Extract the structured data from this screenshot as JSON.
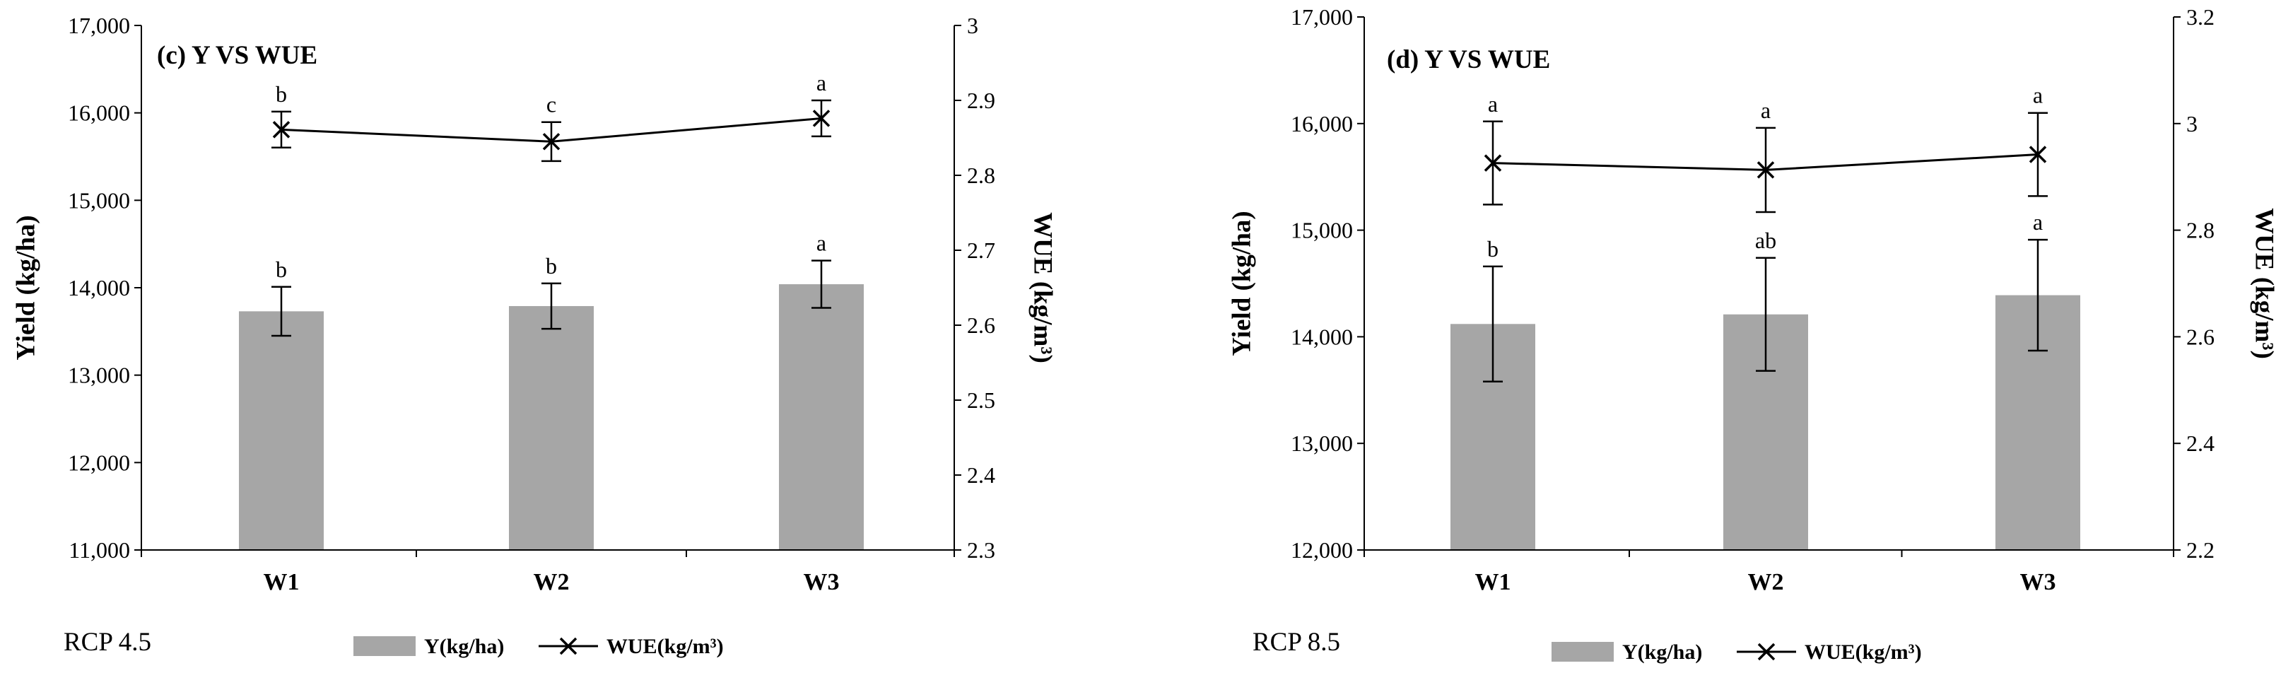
{
  "colors": {
    "bar": "#a6a6a6",
    "line": "#000000",
    "axis": "#000000",
    "background": "#ffffff"
  },
  "legend": {
    "bar_label": "Y(kg/ha)",
    "line_label": "WUE(kg/m³)",
    "placement": "bottom-center"
  },
  "chart_data": [
    {
      "type": "bar",
      "title": "(c) Y VS WUE",
      "scenario": "RCP 4.5",
      "categories": [
        "W1",
        "W2",
        "W3"
      ],
      "xlabel": "",
      "ylabel": "Yield (kg/ha)",
      "y2label": "WUE (kg/m³)",
      "ylim": [
        11000,
        17000
      ],
      "y2lim": [
        2.3,
        3.0
      ],
      "yticks": [
        11000,
        12000,
        13000,
        14000,
        15000,
        16000,
        17000
      ],
      "ytick_labels": [
        "11,000",
        "12,000",
        "13,000",
        "14,000",
        "15,000",
        "16,000",
        "17,000"
      ],
      "y2ticks": [
        2.3,
        2.4,
        2.5,
        2.6,
        2.7,
        2.8,
        2.9,
        3.0
      ],
      "y2tick_labels": [
        "2.3",
        "2.4",
        "2.5",
        "2.6",
        "2.7",
        "2.8",
        "2.9",
        "3"
      ],
      "series": [
        {
          "name": "Y(kg/ha)",
          "kind": "bar",
          "axis": "left",
          "values": [
            13730,
            13790,
            14040
          ],
          "errors": [
            280,
            260,
            270
          ],
          "letters": [
            "b",
            "b",
            "a"
          ]
        },
        {
          "name": "WUE(kg/m³)",
          "kind": "line",
          "axis": "right",
          "values": [
            2.861,
            2.845,
            2.876
          ],
          "errors": [
            0.024,
            0.026,
            0.024
          ],
          "letters": [
            "b",
            "c",
            "a"
          ]
        }
      ],
      "grid": false
    },
    {
      "type": "bar",
      "title": "(d) Y VS WUE",
      "scenario": "RCP 8.5",
      "categories": [
        "W1",
        "W2",
        "W3"
      ],
      "xlabel": "",
      "ylabel": "Yield (kg/ha)",
      "y2label": "WUE (kg/m³)",
      "ylim": [
        12000,
        17000
      ],
      "y2lim": [
        2.2,
        3.2
      ],
      "yticks": [
        12000,
        13000,
        14000,
        15000,
        16000,
        17000
      ],
      "ytick_labels": [
        "12,000",
        "13,000",
        "14,000",
        "15,000",
        "16,000",
        "17,000"
      ],
      "y2ticks": [
        2.2,
        2.4,
        2.6,
        2.8,
        3.0,
        3.2
      ],
      "y2tick_labels": [
        "2.2",
        "2.4",
        "2.6",
        "2.8",
        "3",
        "3.2"
      ],
      "series": [
        {
          "name": "Y(kg/ha)",
          "kind": "bar",
          "axis": "left",
          "values": [
            14120,
            14210,
            14390
          ],
          "errors": [
            540,
            530,
            520
          ],
          "letters": [
            "b",
            "ab",
            "a"
          ]
        },
        {
          "name": "WUE(kg/m³)",
          "kind": "line",
          "axis": "right",
          "values": [
            2.926,
            2.913,
            2.942
          ],
          "errors": [
            0.078,
            0.079,
            0.078
          ],
          "letters": [
            "a",
            "a",
            "a"
          ]
        }
      ],
      "grid": false
    }
  ]
}
